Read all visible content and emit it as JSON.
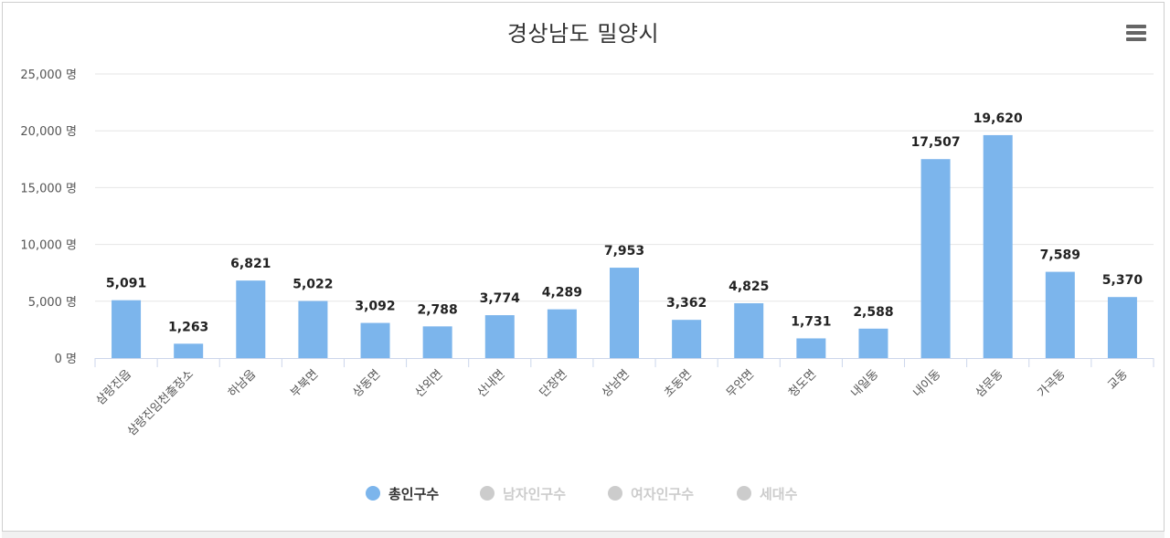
{
  "title": "경상남도 밀양시",
  "menu_icon": "hamburger-menu-icon",
  "colors": {
    "bar": "#7cb5ec",
    "inactive": "#cccccc",
    "grid": "#e6e6e6",
    "axis": "#ccd6eb"
  },
  "legend": [
    {
      "label": "총인구수",
      "active": true
    },
    {
      "label": "남자인구수",
      "active": false
    },
    {
      "label": "여자인구수",
      "active": false
    },
    {
      "label": "세대수",
      "active": false
    }
  ],
  "chart_data": {
    "type": "bar",
    "title": "경상남도 밀양시",
    "categories": [
      "삼랑진읍",
      "삼랑진임천출장소",
      "하남읍",
      "부북면",
      "상동면",
      "산외면",
      "산내면",
      "단장면",
      "상남면",
      "초동면",
      "무안면",
      "청도면",
      "내일동",
      "내이동",
      "삼문동",
      "가곡동",
      "교동"
    ],
    "series": [
      {
        "name": "총인구수",
        "values": [
          5091,
          1263,
          6821,
          5022,
          3092,
          2788,
          3774,
          4289,
          7953,
          3362,
          4825,
          1731,
          2588,
          17507,
          19620,
          7589,
          5370
        ]
      }
    ],
    "data_labels": [
      "5,091",
      "1,263",
      "6,821",
      "5,022",
      "3,092",
      "2,788",
      "3,774",
      "4,289",
      "7,953",
      "3,362",
      "4,825",
      "1,731",
      "2,588",
      "17,507",
      "19,620",
      "7,589",
      "5,370"
    ],
    "yticks": [
      0,
      5000,
      10000,
      15000,
      20000,
      25000
    ],
    "ytick_labels": [
      "0 명",
      "5,000 명",
      "10,000 명",
      "15,000 명",
      "20,000 명",
      "25,000 명"
    ],
    "ylim": [
      0,
      25000
    ],
    "grid": true,
    "legend_position": "bottom-center"
  }
}
